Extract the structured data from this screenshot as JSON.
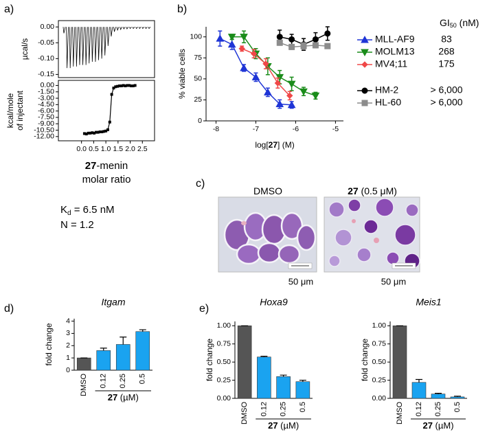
{
  "panels": [
    "a)",
    "b)",
    "c)",
    "d)",
    "e)"
  ],
  "chart_data": [
    {
      "type": "stem",
      "ylabel": "µcal/s",
      "color": "#000000",
      "ylim": [
        -0.16,
        0.02
      ],
      "yticks": [
        {
          "value": 0,
          "label": "0.00"
        },
        -0.05,
        {
          "value": -0.1,
          "label": "-0.10"
        },
        -0.15
      ],
      "values": [
        -0.02,
        -0.13,
        -0.13,
        -0.125,
        -0.125,
        -0.12,
        -0.12,
        -0.12,
        -0.115,
        -0.11,
        -0.11,
        -0.105,
        -0.1,
        -0.09,
        -0.06,
        -0.03,
        -0.015,
        -0.01,
        -0.008,
        -0.006,
        -0.006,
        -0.005,
        -0.005,
        -0.005,
        -0.005,
        -0.005,
        -0.005,
        -0.005
      ]
    },
    {
      "type": "scatter",
      "ylabel": [
        "kcal/mole",
        "of injectant"
      ],
      "compound": "27",
      "xlabel_top": "-menin",
      "xlabel": "molar ratio",
      "color": "#000000",
      "fit": true,
      "xlim": [
        -0.95,
        3.0
      ],
      "ylim": [
        -13,
        1.2
      ],
      "xticks": [
        {
          "value": 0,
          "label": "0.0"
        },
        0.5,
        {
          "value": 1,
          "label": "1.0"
        },
        1.5,
        {
          "value": 2,
          "label": "2.0"
        },
        2.5
      ],
      "yticks": [
        {
          "value": 0,
          "label": "0.00"
        },
        {
          "value": -1.5,
          "label": "-1.50"
        },
        {
          "value": -3,
          "label": "-3.00"
        },
        {
          "value": -4.5,
          "label": "-4.50"
        },
        {
          "value": -6,
          "label": "-6.00"
        },
        {
          "value": -7.5,
          "label": "-7.50"
        },
        {
          "value": -9,
          "label": "-9.00"
        },
        {
          "value": -10.5,
          "label": "-10.50"
        },
        {
          "value": -12,
          "label": "-12.00"
        }
      ],
      "x": [
        0.12,
        0.2,
        0.28,
        0.36,
        0.44,
        0.52,
        0.6,
        0.68,
        0.76,
        0.84,
        0.92,
        1.0,
        1.08,
        1.16,
        1.24,
        1.32,
        1.4,
        1.48,
        1.56,
        1.64,
        1.72,
        1.8,
        1.88,
        1.96,
        2.04,
        2.12,
        2.2
      ],
      "values": [
        -11.3,
        -11.4,
        -11.2,
        -11.2,
        -11.1,
        -11.2,
        -11.0,
        -11.0,
        -10.9,
        -10.9,
        -10.8,
        -10.7,
        -10.4,
        -8.6,
        -2.1,
        -0.6,
        -0.3,
        -0.2,
        -0.1,
        -0.1,
        0.0,
        -0.1,
        0.0,
        0.0,
        -0.1,
        -0.1,
        0.0
      ]
    },
    {
      "type": "line",
      "ylabel": "% viable cells",
      "xlabel": [
        "log[",
        "27",
        "] (M)"
      ],
      "legend_header": [
        "GI",
        "50",
        " (nM)"
      ],
      "xlim": [
        -8.25,
        -4.8
      ],
      "ylim": [
        0,
        112
      ],
      "xticks": [
        -8,
        -7,
        -6,
        -5
      ],
      "yticks": [
        0,
        25,
        50,
        75,
        100
      ],
      "series": [
        {
          "name": "MLL-AF9",
          "gi50": "83",
          "color": "#1f35d6",
          "marker": "triangle",
          "x": [
            -7.9,
            -7.6,
            -7.3,
            -7.0,
            -6.7,
            -6.4,
            -6.1
          ],
          "values": [
            98,
            91,
            63,
            52,
            34,
            20,
            19
          ],
          "errors": [
            9,
            6,
            4,
            5,
            5,
            5,
            4
          ]
        },
        {
          "name": "MOLM13",
          "gi50": "268",
          "color": "#1a8c1a",
          "marker": "triangle-down",
          "x": [
            -7.6,
            -7.3,
            -7.0,
            -6.7,
            -6.4,
            -6.1,
            -5.8,
            -5.5
          ],
          "values": [
            100,
            100,
            80,
            65,
            52,
            44,
            35,
            30
          ],
          "errors": [
            3,
            7,
            6,
            10,
            8,
            8,
            5,
            4
          ]
        },
        {
          "name": "MV4;11",
          "gi50": "175",
          "color": "#f04848",
          "marker": "diamond",
          "x": [
            -7.35,
            -7.05,
            -6.75,
            -6.45,
            -6.15
          ],
          "values": [
            86,
            80,
            68,
            45,
            30
          ],
          "errors": [
            3,
            5,
            6,
            6,
            5
          ]
        },
        {
          "name": "HM-2",
          "gi50": "> 6,000",
          "color": "#000000",
          "marker": "circle",
          "x": [
            -6.4,
            -6.1,
            -5.8,
            -5.5,
            -5.2
          ],
          "values": [
            100,
            97,
            91,
            97,
            104
          ],
          "errors": [
            8,
            6,
            7,
            8,
            8
          ]
        },
        {
          "name": "HL-60",
          "gi50": "> 6,000",
          "color": "#8c8c8c",
          "marker": "square",
          "x": [
            -6.4,
            -6.1,
            -5.8,
            -5.5,
            -5.2
          ],
          "values": [
            93,
            88,
            89,
            90,
            89
          ],
          "errors": [
            3,
            3,
            4,
            3,
            2
          ]
        }
      ]
    },
    {
      "type": "bar",
      "title": "Itgam",
      "ylabel": "fold change",
      "group": [
        "27",
        " (µM)"
      ],
      "categories": [
        "DMSO",
        "0.12",
        "0.25",
        "0.5"
      ],
      "values": [
        1,
        1.6,
        2.1,
        3.15
      ],
      "errors": [
        0,
        0.2,
        0.6,
        0.15
      ],
      "colors": [
        "#555555",
        "#1aa3f0",
        "#1aa3f0",
        "#1aa3f0"
      ],
      "ylim": [
        0,
        4.2
      ],
      "yticks": [
        0,
        1,
        2,
        3,
        4
      ]
    },
    {
      "type": "bar",
      "title": "Hoxa9",
      "ylabel": "fold change",
      "group": [
        "27",
        " (µM)"
      ],
      "categories": [
        "DMSO",
        "0.12",
        "0.25",
        "0.5"
      ],
      "values": [
        1,
        0.57,
        0.3,
        0.23
      ],
      "errors": [
        0,
        0.01,
        0.02,
        0.02
      ],
      "colors": [
        "#555555",
        "#1aa3f0",
        "#1aa3f0",
        "#1aa3f0"
      ],
      "ylim": [
        0,
        1.06
      ],
      "yticks": [
        {
          "value": 0,
          "label": "0.00"
        },
        0.25,
        {
          "value": 0.5,
          "label": "0.50"
        },
        0.75,
        {
          "value": 1,
          "label": "1.00"
        }
      ]
    },
    {
      "type": "bar",
      "title": "Meis1",
      "ylabel": "fold change",
      "group": [
        "27",
        " (µM)"
      ],
      "categories": [
        "DMSO",
        "0.12",
        "0.25",
        "0.5"
      ],
      "values": [
        1,
        0.22,
        0.06,
        0.02
      ],
      "errors": [
        0,
        0.04,
        0.01,
        0.01
      ],
      "colors": [
        "#555555",
        "#1aa3f0",
        "#1aa3f0",
        "#1aa3f0"
      ],
      "ylim": [
        0,
        1.06
      ],
      "yticks": [
        {
          "value": 0,
          "label": "0.00"
        },
        0.25,
        {
          "value": 0.5,
          "label": "0.50"
        },
        0.75,
        {
          "value": 1,
          "label": "1.00"
        }
      ]
    }
  ],
  "itc_result": {
    "kd": {
      "symbol": "K",
      "subscript": "d",
      "text": " = 6.5 nM"
    },
    "n": "N = 1.2"
  },
  "micrographs": [
    {
      "title": [
        "DMSO"
      ],
      "scale": "50 μm"
    },
    {
      "title": [
        "27",
        " (0.5 μM)"
      ],
      "scale": "50 μm"
    }
  ]
}
